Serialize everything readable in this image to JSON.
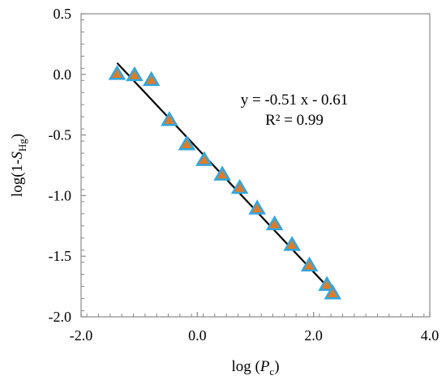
{
  "chart_data": {
    "type": "scatter",
    "title": "",
    "xlabel": {
      "prefix": "log (",
      "italic": "P",
      "sub": "c",
      "suffix": ")"
    },
    "ylabel": {
      "prefix": "log(1-",
      "italic": "S",
      "sub": "Hg",
      "suffix": ")"
    },
    "xlim": [
      -2.0,
      4.0
    ],
    "ylim": [
      -2.0,
      0.5
    ],
    "x_ticks": [
      -2.0,
      0.0,
      2.0,
      4.0
    ],
    "x_tick_labels": [
      "-2.0",
      "0.0",
      "2.0",
      "4.0"
    ],
    "y_ticks": [
      0.5,
      0.0,
      -0.5,
      -1.0,
      -1.5,
      -2.0
    ],
    "y_tick_labels": [
      "0.5",
      "0.0",
      "-0.5",
      "-1.0",
      "-1.5",
      "-2.0"
    ],
    "grid": false,
    "legend": "none",
    "series": [
      {
        "marker": "triangle",
        "marker_fill": "#E07B27",
        "marker_edge": "#33A6DD",
        "points": [
          {
            "x": -1.38,
            "y": 0.0
          },
          {
            "x": -1.08,
            "y": -0.01
          },
          {
            "x": -0.79,
            "y": -0.05
          },
          {
            "x": -0.48,
            "y": -0.38
          },
          {
            "x": -0.18,
            "y": -0.58
          },
          {
            "x": 0.12,
            "y": -0.71
          },
          {
            "x": 0.43,
            "y": -0.83
          },
          {
            "x": 0.73,
            "y": -0.94
          },
          {
            "x": 1.03,
            "y": -1.11
          },
          {
            "x": 1.33,
            "y": -1.24
          },
          {
            "x": 1.63,
            "y": -1.41
          },
          {
            "x": 1.93,
            "y": -1.58
          },
          {
            "x": 2.23,
            "y": -1.74
          },
          {
            "x": 2.33,
            "y": -1.81
          }
        ]
      }
    ],
    "trendline": {
      "slope": -0.51,
      "intercept": -0.61,
      "x_range": [
        -1.38,
        2.33
      ],
      "color": "#000000"
    },
    "annotations": [
      "y = -0.51 x - 0.61",
      "R² = 0.99"
    ]
  }
}
